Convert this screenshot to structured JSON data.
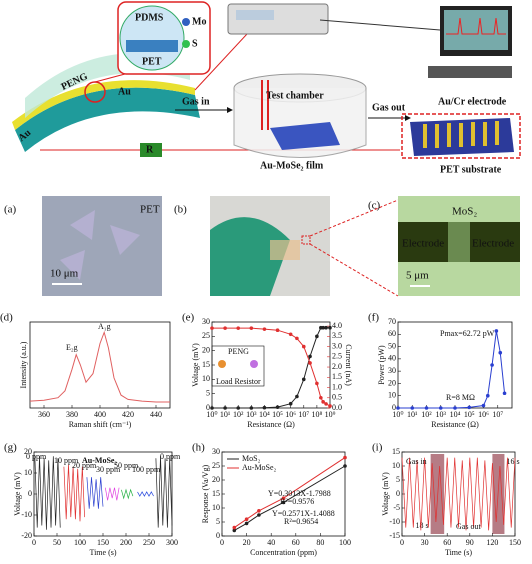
{
  "schematic": {
    "pdms": "PDMS",
    "mo": "Mo",
    "s": "S",
    "pet": "PET",
    "peng": "PENG",
    "au_left": "Au",
    "au_right": "Au",
    "r": "R",
    "gas_in": "Gas in",
    "test_chamber": "Test chamber",
    "gas_out": "Gas out",
    "film": "Au-MoSe₂ film",
    "electrode": "Au/Cr electrode",
    "substrate": "PET substrate"
  },
  "photos": {
    "a": {
      "label": "(a)",
      "text": "PET",
      "scale": "10 μm"
    },
    "b": {
      "label": "(b)"
    },
    "c": {
      "label": "(c)",
      "material": "MoS₂",
      "electrode_left": "Electrode",
      "electrode_right": "Electrode",
      "scale": "5 μm"
    }
  },
  "chart_data": [
    {
      "type": "line",
      "title": "(d)",
      "x_label": "Raman shift (cm⁻¹)",
      "y_label": "Intensity (a.u.)",
      "x": [
        350,
        360,
        370,
        375,
        380,
        383,
        386,
        390,
        395,
        400,
        403,
        406,
        410,
        415,
        420,
        430,
        440,
        450
      ],
      "series": [
        {
          "color": "#e06060",
          "values": [
            0.08,
            0.09,
            0.12,
            0.2,
            0.45,
            0.62,
            0.5,
            0.3,
            0.4,
            0.75,
            0.88,
            0.7,
            0.35,
            0.15,
            0.1,
            0.08,
            0.07,
            0.07
          ]
        }
      ],
      "xlim": [
        350,
        450
      ],
      "xticks": [
        360,
        380,
        400,
        420,
        440
      ],
      "ylim": [
        0,
        1
      ],
      "yticks": [],
      "annotations": [
        "E₂g",
        "A₁g"
      ]
    },
    {
      "type": "line",
      "title": "(e)",
      "x_label": "Resistance (Ω)",
      "y_label": "Voltage (mV)",
      "y2_label": "Current (nA)",
      "x_scale": "log",
      "x": [
        1,
        10,
        100,
        1000,
        10000,
        100000,
        1000000,
        3000000,
        10000000,
        30000000,
        100000000,
        200000000,
        300000000,
        500000000,
        1000000000
      ],
      "series": [
        {
          "color": "#222222",
          "values": [
            0,
            0,
            0,
            0,
            0.1,
            0.3,
            1.5,
            4,
            10,
            18,
            25,
            28,
            28,
            28,
            28
          ]
        },
        {
          "color": "#e03030",
          "axis": "y2",
          "values": [
            3.9,
            3.9,
            3.9,
            3.9,
            3.85,
            3.8,
            3.6,
            3.4,
            3.0,
            2.2,
            1.2,
            0.5,
            0.3,
            0.2,
            0.1
          ]
        }
      ],
      "xlim": [
        1,
        1000000000
      ],
      "xticks": [
        {
          "value": 1,
          "label": "10⁰"
        },
        {
          "value": 10,
          "label": "10¹"
        },
        {
          "value": 100,
          "label": "10²"
        },
        {
          "value": 1000,
          "label": "10³"
        },
        {
          "value": 10000,
          "label": "10⁴"
        },
        {
          "value": 100000,
          "label": "10⁵"
        },
        {
          "value": 1000000,
          "label": "10⁶"
        },
        {
          "value": 10000000,
          "label": "10⁷"
        },
        {
          "value": 100000000,
          "label": "10⁸"
        },
        {
          "value": 1000000000,
          "label": "10⁹"
        }
      ],
      "ylim": [
        0,
        30
      ],
      "yticks": [
        0,
        5,
        10,
        15,
        20,
        25,
        30
      ],
      "y2lim": [
        0,
        4.2
      ],
      "y2ticks": [
        {
          "value": 0,
          "label": "0.0"
        },
        {
          "value": 0.5,
          "label": "0.5"
        },
        {
          "value": 1,
          "label": "1.0"
        },
        1.5,
        {
          "value": 2,
          "label": "2.0"
        },
        2.5,
        {
          "value": 3,
          "label": "3.0"
        },
        3.5,
        {
          "value": 4,
          "label": "4.0"
        }
      ],
      "annotations": [
        "PENG",
        "Load Resistor"
      ]
    },
    {
      "type": "line",
      "title": "(f)",
      "x_label": "Resistance (Ω)",
      "y_label": "Power (pW)",
      "x_scale": "log",
      "x": [
        1,
        10,
        100,
        1000,
        10000,
        100000,
        1000000,
        2000000,
        4000000,
        8000000,
        15000000,
        30000000
      ],
      "series": [
        {
          "color": "#2a3fd0",
          "values": [
            0,
            0,
            0,
            0,
            0,
            0.5,
            2,
            10,
            35,
            62.72,
            45,
            12
          ]
        }
      ],
      "xlim": [
        1,
        100000000
      ],
      "xticks": [
        {
          "value": 1,
          "label": "10⁰"
        },
        {
          "value": 10,
          "label": "10¹"
        },
        {
          "value": 100,
          "label": "10²"
        },
        {
          "value": 1000,
          "label": "10³"
        },
        {
          "value": 10000,
          "label": "10⁴"
        },
        {
          "value": 100000,
          "label": "10⁵"
        },
        {
          "value": 1000000,
          "label": "10⁶"
        },
        {
          "value": 10000000,
          "label": "10⁷"
        }
      ],
      "ylim": [
        0,
        70
      ],
      "yticks": [
        0,
        10,
        20,
        30,
        40,
        50,
        60,
        70
      ],
      "annotations": [
        "Pmax=62.72 pW",
        "R=8 MΩ"
      ]
    },
    {
      "type": "line",
      "title": "(g)",
      "x_label": "Time (s)",
      "y_label": "Voltage (mV)",
      "series": [
        {
          "color": "#222222",
          "x": [
            2,
            7,
            12,
            17,
            22,
            27,
            32,
            37,
            42,
            47,
            52,
            57
          ],
          "values": [
            17,
            -16,
            18,
            -15,
            17,
            -17,
            16,
            -16,
            18,
            -15,
            17,
            -16
          ]
        },
        {
          "color": "#e03030",
          "x": [
            65,
            70,
            75,
            80,
            85,
            90,
            95,
            100,
            105,
            110
          ],
          "values": [
            13,
            -12,
            14,
            -11,
            13,
            -12,
            12,
            -13,
            13,
            -11
          ]
        },
        {
          "color": "#2a3fd0",
          "x": [
            115,
            120,
            125,
            130,
            135,
            140,
            145,
            150
          ],
          "values": [
            8,
            -7,
            8,
            -6,
            7,
            -7,
            8,
            -6
          ]
        },
        {
          "color": "#e040e0",
          "x": [
            155,
            160,
            165,
            170,
            175,
            180,
            185
          ],
          "values": [
            3,
            -3,
            3,
            -2,
            3,
            -3,
            3
          ]
        },
        {
          "color": "#20b040",
          "x": [
            190,
            195,
            200,
            205,
            210,
            215
          ],
          "values": [
            2,
            -2,
            2,
            -2,
            2,
            -1
          ]
        },
        {
          "color": "#3050e0",
          "x": [
            225,
            230,
            235,
            240,
            245,
            250,
            255,
            260
          ],
          "values": [
            1,
            -1,
            1,
            -1,
            1,
            -1,
            1,
            -1
          ]
        },
        {
          "color": "#222222",
          "x": [
            265,
            270,
            275,
            280,
            285,
            290,
            295,
            300
          ],
          "values": [
            17,
            -16,
            18,
            -15,
            17,
            -16,
            17,
            -15
          ]
        }
      ],
      "xlim": [
        0,
        300
      ],
      "xticks": [
        0,
        50,
        100,
        150,
        200,
        250,
        300
      ],
      "ylim": [
        -20,
        20
      ],
      "yticks": [
        -20,
        -10,
        0,
        10,
        20
      ],
      "annotations": [
        "Au-MoSe₂",
        "0 ppm",
        "10 ppm",
        "20 ppm",
        "30 ppm",
        "50 ppm",
        "100 ppm",
        "0 ppm"
      ]
    },
    {
      "type": "line",
      "title": "(h)",
      "x_label": "Concentration (ppm)",
      "y_label": "Response (Va/Vg)",
      "markers": true,
      "legend": "upper left",
      "x": [
        10,
        20,
        30,
        50,
        100
      ],
      "series": [
        {
          "name": "MoS₂",
          "color": "#222222",
          "values": [
            2,
            4.5,
            7.5,
            12,
            25
          ]
        },
        {
          "name": "Au-MoSe₂",
          "color": "#e03030",
          "values": [
            3,
            6,
            9,
            13.5,
            28
          ]
        }
      ],
      "xlim": [
        0,
        100
      ],
      "xticks": [
        0,
        20,
        40,
        60,
        80,
        100
      ],
      "ylim": [
        0,
        30
      ],
      "yticks": [
        0,
        5,
        10,
        15,
        20,
        25,
        30
      ],
      "annotations": [
        "Y=0.3013X-1.7988",
        "R²=0.9576",
        "Y=0.2571X-1.4088",
        "R²=0.9654"
      ]
    },
    {
      "type": "line",
      "title": "(i)",
      "x_label": "Time (s)",
      "y_label": "Voltage (mV)",
      "x": [
        0,
        5,
        10,
        15,
        20,
        25,
        30,
        35,
        40,
        45,
        50,
        55,
        60,
        65,
        70,
        75,
        80,
        85,
        90,
        95,
        100,
        105,
        110,
        115,
        120,
        125,
        130,
        135,
        140,
        145,
        150
      ],
      "series": [
        {
          "color": "#e03030",
          "values": [
            13,
            -12,
            13,
            -12,
            12,
            -13,
            13,
            -12,
            11,
            -10,
            10,
            -11,
            13,
            -12,
            13,
            -12,
            12,
            -13,
            13,
            -12,
            13,
            -12,
            12,
            -13,
            11,
            -10,
            10,
            -11,
            13,
            -12,
            13
          ]
        }
      ],
      "xlim": [
        0,
        150
      ],
      "xticks": [
        0,
        30,
        60,
        90,
        120,
        150
      ],
      "ylim": [
        -15,
        15
      ],
      "yticks": [
        -15,
        -10,
        -5,
        0,
        5,
        10,
        15
      ],
      "gas_windows": [
        {
          "start": 38,
          "duration": 18,
          "label": "18 s"
        },
        {
          "start": 120,
          "duration": 16,
          "label": "16 s"
        }
      ],
      "annotations": [
        "Gas in",
        "Gas out"
      ]
    }
  ]
}
